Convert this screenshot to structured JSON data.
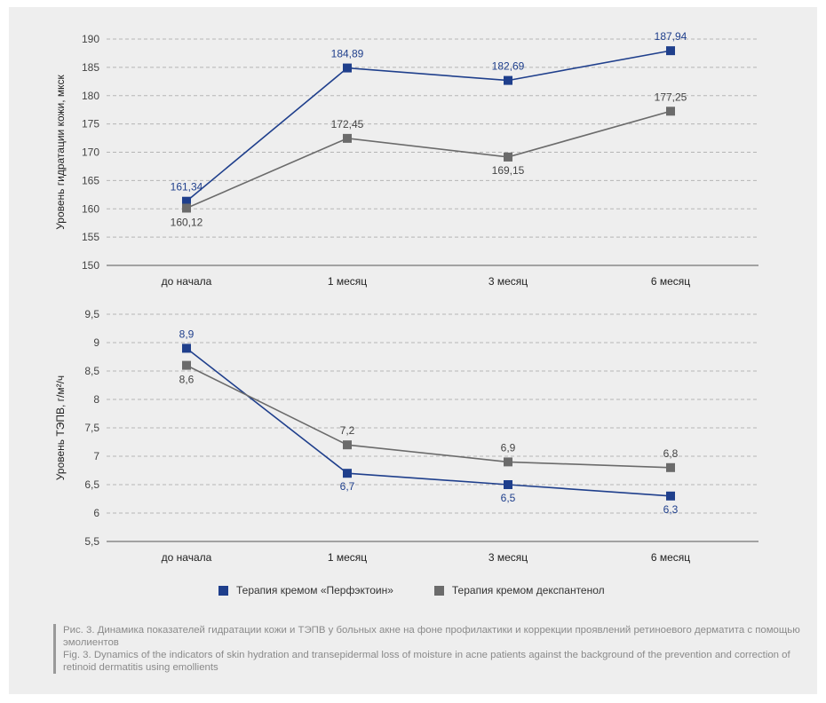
{
  "chart_data": [
    {
      "type": "line",
      "ylabel": "Уровень гидратации кожи, мкск",
      "xlabel": "",
      "categories": [
        "до начала",
        "1 месяц",
        "3 месяц",
        "6 месяц"
      ],
      "ylim": [
        150,
        190
      ],
      "yticks": [
        "150",
        "155",
        "160",
        "165",
        "170",
        "175",
        "180",
        "185",
        "190"
      ],
      "grid": true,
      "series": [
        {
          "name": "Терапия кремом «Перфэктоин»",
          "color": "#1f3f8c",
          "values": [
            161.34,
            184.89,
            182.69,
            187.94
          ],
          "labels": [
            "161,34",
            "184,89",
            "182,69",
            "187,94"
          ]
        },
        {
          "name": "Терапия кремом декспантенол",
          "color": "#6b6b6b",
          "values": [
            160.12,
            172.45,
            169.15,
            177.25
          ],
          "labels": [
            "160,12",
            "172,45",
            "169,15",
            "177,25"
          ]
        }
      ]
    },
    {
      "type": "line",
      "ylabel": "Уровень ТЭПВ, г/м²/ч",
      "xlabel": "",
      "categories": [
        "до начала",
        "1 месяц",
        "3 месяц",
        "6 месяц"
      ],
      "ylim": [
        5.5,
        9.5
      ],
      "yticks": [
        "5,5",
        "6",
        "6,5",
        "7",
        "7,5",
        "8",
        "8,5",
        "9",
        "9,5"
      ],
      "grid": true,
      "series": [
        {
          "name": "Терапия кремом «Перфэктоин»",
          "color": "#1f3f8c",
          "values": [
            8.9,
            6.7,
            6.5,
            6.3
          ],
          "labels": [
            "8,9",
            "6,7",
            "6,5",
            "6,3"
          ]
        },
        {
          "name": "Терапия кремом декспантенол",
          "color": "#6b6b6b",
          "values": [
            8.6,
            7.2,
            6.9,
            6.8
          ],
          "labels": [
            "8,6",
            "7,2",
            "6,9",
            "6,8"
          ]
        }
      ]
    }
  ],
  "legend": {
    "items": [
      {
        "label": "Терапия кремом «Перфэктоин»",
        "color": "#1f3f8c"
      },
      {
        "label": "Терапия кремом декспантенол",
        "color": "#6b6b6b"
      }
    ]
  },
  "caption": {
    "ru": "Рис. 3. Динамика показателей гидратации кожи и ТЭПВ у больных акне на фоне профилактики и коррекции проявлений ретиноевого дерматита с помощью эмолиентов",
    "en": "Fig. 3. Dynamics of the indicators of skin hydration and transepidermal loss of moisture in acne patients against the background of the prevention and correction of retinoid dermatitis using emollients"
  }
}
